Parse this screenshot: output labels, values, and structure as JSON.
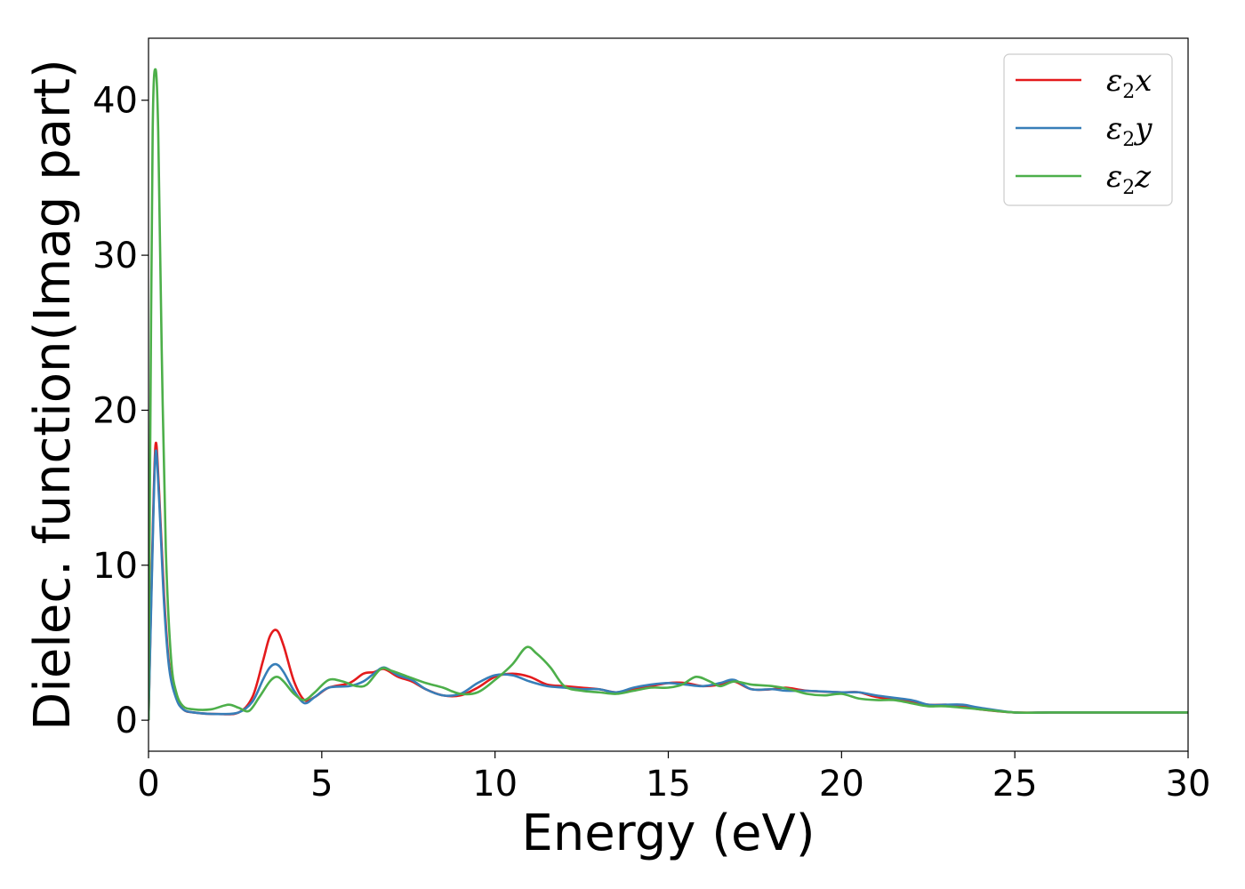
{
  "chart_data": {
    "type": "line",
    "title": "",
    "xlabel": "Energy (eV)",
    "ylabel": "Dielec. function(Imag part)",
    "xlim": [
      0,
      30
    ],
    "ylim": [
      -2,
      44
    ],
    "xticks": [
      "0",
      "5",
      "10",
      "15",
      "20",
      "25",
      "30"
    ],
    "yticks": [
      "0",
      "10",
      "20",
      "30",
      "40"
    ],
    "grid": false,
    "legend_position": "top-right",
    "series": [
      {
        "name": "ε₂x",
        "legend": {
          "base": "ε",
          "sub": "2",
          "suffix": "x"
        },
        "color": "#e41a1c",
        "points": [
          [
            0,
            0
          ],
          [
            0.1,
            10
          ],
          [
            0.2,
            17.7
          ],
          [
            0.3,
            15
          ],
          [
            0.45,
            8
          ],
          [
            0.6,
            3.5
          ],
          [
            0.8,
            1.5
          ],
          [
            1.0,
            0.7
          ],
          [
            1.3,
            0.5
          ],
          [
            2.0,
            0.4
          ],
          [
            2.6,
            0.5
          ],
          [
            3.0,
            1.5
          ],
          [
            3.3,
            3.8
          ],
          [
            3.5,
            5.4
          ],
          [
            3.7,
            5.8
          ],
          [
            3.9,
            4.8
          ],
          [
            4.2,
            2.5
          ],
          [
            4.5,
            1.3
          ],
          [
            4.8,
            1.5
          ],
          [
            5.2,
            2.1
          ],
          [
            5.8,
            2.4
          ],
          [
            6.2,
            3.0
          ],
          [
            6.5,
            3.1
          ],
          [
            6.8,
            3.3
          ],
          [
            7.2,
            2.8
          ],
          [
            7.6,
            2.5
          ],
          [
            8.0,
            2.0
          ],
          [
            8.5,
            1.6
          ],
          [
            9.0,
            1.6
          ],
          [
            9.5,
            2.1
          ],
          [
            10.0,
            2.8
          ],
          [
            10.5,
            3.0
          ],
          [
            11.0,
            2.8
          ],
          [
            11.5,
            2.3
          ],
          [
            12.0,
            2.2
          ],
          [
            12.5,
            2.1
          ],
          [
            13.0,
            2.0
          ],
          [
            13.5,
            1.8
          ],
          [
            14.0,
            2.0
          ],
          [
            14.5,
            2.2
          ],
          [
            15.0,
            2.4
          ],
          [
            15.5,
            2.4
          ],
          [
            16.0,
            2.2
          ],
          [
            16.5,
            2.3
          ],
          [
            16.9,
            2.5
          ],
          [
            17.4,
            2.0
          ],
          [
            18.0,
            2.0
          ],
          [
            18.4,
            2.1
          ],
          [
            19.0,
            1.9
          ],
          [
            20.0,
            1.8
          ],
          [
            20.5,
            1.8
          ],
          [
            21.0,
            1.5
          ],
          [
            22.0,
            1.2
          ],
          [
            22.5,
            1.0
          ],
          [
            23.0,
            1.0
          ],
          [
            23.5,
            0.9
          ],
          [
            24.0,
            0.7
          ],
          [
            25.0,
            0.5
          ],
          [
            26.0,
            0.5
          ],
          [
            27.0,
            0.5
          ],
          [
            28.0,
            0.5
          ],
          [
            29.0,
            0.5
          ],
          [
            30.0,
            0.5
          ]
        ]
      },
      {
        "name": "ε₂y",
        "legend": {
          "base": "ε",
          "sub": "2",
          "suffix": "y"
        },
        "color": "#377eb8",
        "points": [
          [
            0,
            0
          ],
          [
            0.1,
            9.5
          ],
          [
            0.2,
            17.2
          ],
          [
            0.3,
            14.5
          ],
          [
            0.45,
            7.5
          ],
          [
            0.6,
            3.3
          ],
          [
            0.8,
            1.4
          ],
          [
            1.0,
            0.7
          ],
          [
            1.3,
            0.5
          ],
          [
            2.0,
            0.4
          ],
          [
            2.6,
            0.5
          ],
          [
            3.0,
            1.2
          ],
          [
            3.3,
            2.6
          ],
          [
            3.5,
            3.4
          ],
          [
            3.7,
            3.6
          ],
          [
            3.9,
            3.1
          ],
          [
            4.2,
            1.9
          ],
          [
            4.5,
            1.1
          ],
          [
            4.8,
            1.5
          ],
          [
            5.2,
            2.1
          ],
          [
            5.8,
            2.2
          ],
          [
            6.2,
            2.5
          ],
          [
            6.5,
            3.0
          ],
          [
            6.8,
            3.4
          ],
          [
            7.2,
            2.9
          ],
          [
            7.6,
            2.6
          ],
          [
            8.0,
            2.0
          ],
          [
            8.5,
            1.6
          ],
          [
            9.0,
            1.7
          ],
          [
            9.5,
            2.4
          ],
          [
            10.0,
            2.9
          ],
          [
            10.5,
            2.9
          ],
          [
            11.0,
            2.5
          ],
          [
            11.5,
            2.2
          ],
          [
            12.0,
            2.1
          ],
          [
            12.5,
            2.0
          ],
          [
            13.0,
            2.0
          ],
          [
            13.5,
            1.8
          ],
          [
            14.0,
            2.1
          ],
          [
            14.5,
            2.3
          ],
          [
            15.0,
            2.4
          ],
          [
            15.5,
            2.3
          ],
          [
            16.0,
            2.2
          ],
          [
            16.5,
            2.4
          ],
          [
            16.9,
            2.6
          ],
          [
            17.4,
            2.0
          ],
          [
            18.0,
            2.0
          ],
          [
            18.4,
            1.9
          ],
          [
            19.0,
            1.9
          ],
          [
            20.0,
            1.8
          ],
          [
            20.5,
            1.8
          ],
          [
            21.0,
            1.6
          ],
          [
            22.0,
            1.3
          ],
          [
            22.5,
            1.0
          ],
          [
            23.0,
            1.0
          ],
          [
            23.5,
            1.0
          ],
          [
            24.0,
            0.8
          ],
          [
            25.0,
            0.5
          ],
          [
            26.0,
            0.5
          ],
          [
            27.0,
            0.5
          ],
          [
            28.0,
            0.5
          ],
          [
            29.0,
            0.5
          ],
          [
            30.0,
            0.5
          ]
        ]
      },
      {
        "name": "ε₂z",
        "legend": {
          "base": "ε",
          "sub": "2",
          "suffix": "z"
        },
        "color": "#4daf4a",
        "points": [
          [
            0,
            0
          ],
          [
            0.05,
            18
          ],
          [
            0.12,
            38
          ],
          [
            0.2,
            42
          ],
          [
            0.28,
            38
          ],
          [
            0.38,
            24
          ],
          [
            0.5,
            11
          ],
          [
            0.65,
            4
          ],
          [
            0.8,
            1.8
          ],
          [
            1.0,
            0.9
          ],
          [
            1.3,
            0.7
          ],
          [
            1.8,
            0.7
          ],
          [
            2.3,
            1.0
          ],
          [
            2.6,
            0.8
          ],
          [
            2.9,
            0.6
          ],
          [
            3.2,
            1.5
          ],
          [
            3.5,
            2.5
          ],
          [
            3.7,
            2.8
          ],
          [
            3.9,
            2.5
          ],
          [
            4.2,
            1.7
          ],
          [
            4.5,
            1.3
          ],
          [
            4.8,
            1.8
          ],
          [
            5.2,
            2.6
          ],
          [
            5.6,
            2.5
          ],
          [
            6.0,
            2.2
          ],
          [
            6.3,
            2.3
          ],
          [
            6.7,
            3.3
          ],
          [
            7.0,
            3.2
          ],
          [
            7.5,
            2.8
          ],
          [
            8.0,
            2.4
          ],
          [
            8.5,
            2.1
          ],
          [
            9.0,
            1.7
          ],
          [
            9.5,
            1.8
          ],
          [
            10.0,
            2.6
          ],
          [
            10.5,
            3.6
          ],
          [
            10.9,
            4.7
          ],
          [
            11.2,
            4.3
          ],
          [
            11.6,
            3.4
          ],
          [
            12.0,
            2.2
          ],
          [
            12.5,
            1.9
          ],
          [
            13.0,
            1.8
          ],
          [
            13.5,
            1.7
          ],
          [
            14.0,
            1.9
          ],
          [
            14.5,
            2.1
          ],
          [
            15.0,
            2.1
          ],
          [
            15.4,
            2.3
          ],
          [
            15.8,
            2.8
          ],
          [
            16.2,
            2.5
          ],
          [
            16.5,
            2.2
          ],
          [
            16.9,
            2.5
          ],
          [
            17.4,
            2.3
          ],
          [
            18.0,
            2.2
          ],
          [
            18.5,
            2.0
          ],
          [
            19.0,
            1.7
          ],
          [
            19.5,
            1.6
          ],
          [
            20.0,
            1.7
          ],
          [
            20.5,
            1.4
          ],
          [
            21.0,
            1.3
          ],
          [
            21.5,
            1.3
          ],
          [
            22.0,
            1.1
          ],
          [
            22.5,
            0.9
          ],
          [
            23.0,
            0.9
          ],
          [
            24.0,
            0.7
          ],
          [
            25.0,
            0.5
          ],
          [
            26.0,
            0.5
          ],
          [
            27.0,
            0.5
          ],
          [
            28.0,
            0.5
          ],
          [
            29.0,
            0.5
          ],
          [
            30.0,
            0.5
          ]
        ]
      }
    ]
  }
}
